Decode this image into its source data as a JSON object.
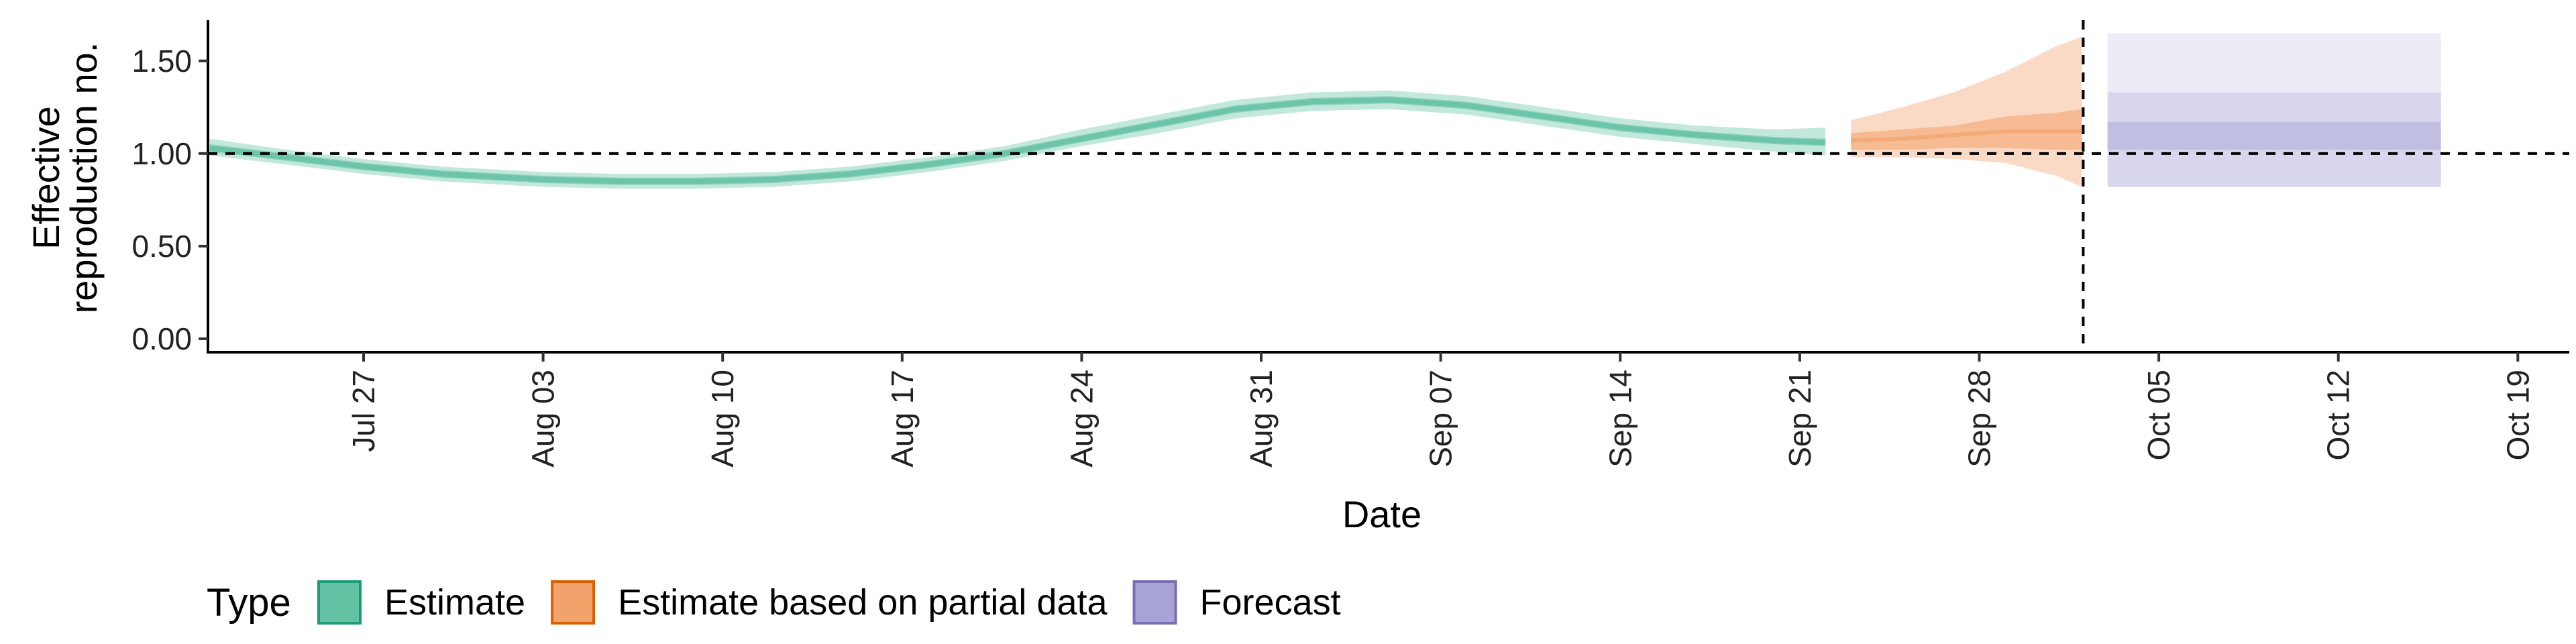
{
  "chart_data": {
    "type": "area",
    "xlabel": "Date",
    "ylabel_line1": "Effective",
    "ylabel_line2": "reproduction no.",
    "ylim": [
      0,
      1.72
    ],
    "y_ticks": [
      {
        "value": 0.0,
        "label": "0.00"
      },
      {
        "value": 0.5,
        "label": "0.50"
      },
      {
        "value": 1.0,
        "label": "1.00"
      },
      {
        "value": 1.5,
        "label": "1.50"
      }
    ],
    "x_ticks": [
      {
        "date": "2020-07-27",
        "label": "Jul 27"
      },
      {
        "date": "2020-08-03",
        "label": "Aug 03"
      },
      {
        "date": "2020-08-10",
        "label": "Aug 10"
      },
      {
        "date": "2020-08-17",
        "label": "Aug 17"
      },
      {
        "date": "2020-08-24",
        "label": "Aug 24"
      },
      {
        "date": "2020-08-31",
        "label": "Aug 31"
      },
      {
        "date": "2020-09-07",
        "label": "Sep 07"
      },
      {
        "date": "2020-09-14",
        "label": "Sep 14"
      },
      {
        "date": "2020-09-21",
        "label": "Sep 21"
      },
      {
        "date": "2020-09-28",
        "label": "Sep 28"
      },
      {
        "date": "2020-10-05",
        "label": "Oct 05"
      },
      {
        "date": "2020-10-12",
        "label": "Oct 12"
      },
      {
        "date": "2020-10-19",
        "label": "Oct 19"
      }
    ],
    "reference_line_y": 1.0,
    "forecast_start_date": "2020-10-02",
    "legend": {
      "title": "Type",
      "position": "bottom",
      "entries": [
        {
          "label": "Estimate",
          "fill": "#66c2a5",
          "stroke": "#1b9e77"
        },
        {
          "label": "Estimate based on partial data",
          "fill": "#f2a36b",
          "stroke": "#d95f02"
        },
        {
          "label": "Forecast",
          "fill": "#a7a3d4",
          "stroke": "#7570b3"
        }
      ]
    },
    "series": [
      {
        "name": "Estimate",
        "color": "#1b9e77",
        "points": [
          {
            "date": "2020-07-21",
            "median": 1.03,
            "lower50": 1.01,
            "upper50": 1.05,
            "lower90": 0.99,
            "upper90": 1.08
          },
          {
            "date": "2020-07-24",
            "median": 0.98,
            "lower50": 0.96,
            "upper50": 1.0,
            "lower90": 0.94,
            "upper90": 1.02
          },
          {
            "date": "2020-07-27",
            "median": 0.93,
            "lower50": 0.91,
            "upper50": 0.95,
            "lower90": 0.89,
            "upper90": 0.97
          },
          {
            "date": "2020-07-30",
            "median": 0.89,
            "lower50": 0.87,
            "upper50": 0.91,
            "lower90": 0.85,
            "upper90": 0.93
          },
          {
            "date": "2020-08-03",
            "median": 0.86,
            "lower50": 0.84,
            "upper50": 0.88,
            "lower90": 0.82,
            "upper90": 0.9
          },
          {
            "date": "2020-08-06",
            "median": 0.85,
            "lower50": 0.83,
            "upper50": 0.87,
            "lower90": 0.81,
            "upper90": 0.89
          },
          {
            "date": "2020-08-09",
            "median": 0.85,
            "lower50": 0.83,
            "upper50": 0.87,
            "lower90": 0.81,
            "upper90": 0.89
          },
          {
            "date": "2020-08-12",
            "median": 0.86,
            "lower50": 0.84,
            "upper50": 0.88,
            "lower90": 0.82,
            "upper90": 0.9
          },
          {
            "date": "2020-08-15",
            "median": 0.89,
            "lower50": 0.87,
            "upper50": 0.91,
            "lower90": 0.85,
            "upper90": 0.93
          },
          {
            "date": "2020-08-18",
            "median": 0.94,
            "lower50": 0.92,
            "upper50": 0.96,
            "lower90": 0.9,
            "upper90": 0.98
          },
          {
            "date": "2020-08-21",
            "median": 1.0,
            "lower50": 0.98,
            "upper50": 1.02,
            "lower90": 0.96,
            "upper90": 1.04
          },
          {
            "date": "2020-08-24",
            "median": 1.08,
            "lower50": 1.06,
            "upper50": 1.1,
            "lower90": 1.04,
            "upper90": 1.13
          },
          {
            "date": "2020-08-27",
            "median": 1.16,
            "lower50": 1.14,
            "upper50": 1.18,
            "lower90": 1.11,
            "upper90": 1.21
          },
          {
            "date": "2020-08-30",
            "median": 1.24,
            "lower50": 1.22,
            "upper50": 1.26,
            "lower90": 1.19,
            "upper90": 1.29
          },
          {
            "date": "2020-09-02",
            "median": 1.28,
            "lower50": 1.26,
            "upper50": 1.3,
            "lower90": 1.23,
            "upper90": 1.33
          },
          {
            "date": "2020-09-05",
            "median": 1.29,
            "lower50": 1.27,
            "upper50": 1.31,
            "lower90": 1.24,
            "upper90": 1.34
          },
          {
            "date": "2020-09-08",
            "median": 1.26,
            "lower50": 1.24,
            "upper50": 1.28,
            "lower90": 1.21,
            "upper90": 1.31
          },
          {
            "date": "2020-09-11",
            "median": 1.2,
            "lower50": 1.18,
            "upper50": 1.22,
            "lower90": 1.15,
            "upper90": 1.25
          },
          {
            "date": "2020-09-14",
            "median": 1.14,
            "lower50": 1.12,
            "upper50": 1.16,
            "lower90": 1.09,
            "upper90": 1.19
          },
          {
            "date": "2020-09-17",
            "median": 1.1,
            "lower50": 1.08,
            "upper50": 1.12,
            "lower90": 1.05,
            "upper90": 1.15
          },
          {
            "date": "2020-09-20",
            "median": 1.07,
            "lower50": 1.05,
            "upper50": 1.09,
            "lower90": 1.01,
            "upper90": 1.13
          },
          {
            "date": "2020-09-22",
            "median": 1.06,
            "lower50": 1.04,
            "upper50": 1.08,
            "lower90": 0.99,
            "upper90": 1.14
          }
        ]
      },
      {
        "name": "Estimate based on partial data",
        "color": "#d95f02",
        "points": [
          {
            "date": "2020-09-23",
            "median": 1.07,
            "lower50": 1.02,
            "upper50": 1.11,
            "lower90": 0.98,
            "upper90": 1.18
          },
          {
            "date": "2020-09-25",
            "median": 1.08,
            "lower50": 1.02,
            "upper50": 1.13,
            "lower90": 0.98,
            "upper90": 1.25
          },
          {
            "date": "2020-09-27",
            "median": 1.1,
            "lower50": 1.03,
            "upper50": 1.15,
            "lower90": 0.97,
            "upper90": 1.33
          },
          {
            "date": "2020-09-29",
            "median": 1.12,
            "lower50": 1.03,
            "upper50": 1.2,
            "lower90": 0.95,
            "upper90": 1.44
          },
          {
            "date": "2020-10-01",
            "median": 1.12,
            "lower50": 1.02,
            "upper50": 1.22,
            "lower90": 0.88,
            "upper90": 1.58
          },
          {
            "date": "2020-10-02",
            "median": 1.12,
            "lower50": 1.02,
            "upper50": 1.24,
            "lower90": 0.82,
            "upper90": 1.63
          }
        ]
      },
      {
        "name": "Forecast",
        "color": "#7570b3",
        "points": [
          {
            "date": "2020-10-03",
            "median": 1.1,
            "lower50": 1.02,
            "upper50": 1.17,
            "lower90": 0.82,
            "upper90": 1.33,
            "lower95": 0.82,
            "upper95": 1.65
          },
          {
            "date": "2020-10-16",
            "median": 1.1,
            "lower50": 1.02,
            "upper50": 1.17,
            "lower90": 0.82,
            "upper90": 1.33,
            "lower95": 0.82,
            "upper95": 1.65
          }
        ]
      }
    ]
  }
}
